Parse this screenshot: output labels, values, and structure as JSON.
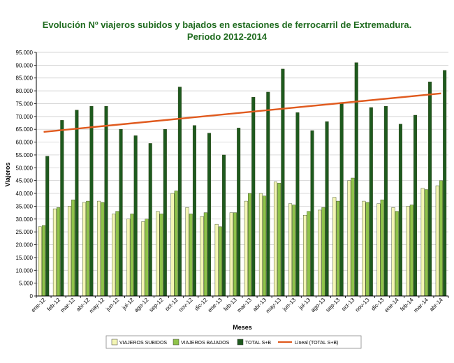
{
  "chart_data": {
    "type": "bar",
    "title_line1": "Evolución Nº viajeros subidos y bajados en estaciones de ferrocarril de Extremadura.",
    "title_line2": "Periodo 2012-2014",
    "xlabel": "Meses",
    "ylabel": "Viajeros",
    "ylim": [
      0,
      95000
    ],
    "ystep": 5000,
    "grid": true,
    "legend_placement": "bottom",
    "categories": [
      "ene-12",
      "feb-12",
      "mar-12",
      "abr-12",
      "may-12",
      "jun-12",
      "jul-12",
      "ago-12",
      "sep-12",
      "oct-12",
      "nov-12",
      "dic-12",
      "ene-13",
      "feb-13",
      "mar-13",
      "abr-13",
      "may-13",
      "jun-13",
      "jul-13",
      "ago-13",
      "sep-13",
      "oct-13",
      "nov-13",
      "dic-13",
      "ene-14",
      "feb-14",
      "mar-14",
      "abr-14"
    ],
    "series": [
      {
        "name": "VIAJEROS SUBIDOS",
        "color": "#f3f5b4",
        "values": [
          27000,
          34000,
          35000,
          36500,
          37000,
          32000,
          30000,
          29000,
          33000,
          40000,
          34500,
          31000,
          28000,
          32500,
          37000,
          40000,
          44500,
          36000,
          31500,
          33500,
          38500,
          45000,
          37000,
          36000,
          34500,
          35000,
          42000,
          43000
        ]
      },
      {
        "name": "VIAJEROS BAJADOS",
        "color": "#8fc34a",
        "values": [
          27500,
          34500,
          37500,
          37000,
          36500,
          33000,
          32000,
          30000,
          32000,
          41000,
          32000,
          32500,
          27000,
          32500,
          40000,
          39000,
          44000,
          35500,
          33000,
          34500,
          37000,
          46000,
          36500,
          37500,
          33000,
          35500,
          41500,
          45000
        ]
      },
      {
        "name": "TOTAL S+B",
        "color": "#1e5a1e",
        "values": [
          54500,
          68500,
          72500,
          74000,
          74000,
          65000,
          62500,
          59500,
          65000,
          81500,
          66500,
          63500,
          55000,
          65500,
          77500,
          79500,
          88500,
          71500,
          64500,
          68000,
          75500,
          91000,
          73500,
          74000,
          67000,
          70500,
          83500,
          88000
        ]
      }
    ],
    "trend": {
      "name": "Lineal (TOTAL S+B)",
      "color": "#e05a1e",
      "start": 64000,
      "end": 79000
    },
    "tick_labels": [
      "0",
      "5.000",
      "10.000",
      "15.000",
      "20.000",
      "25.000",
      "30.000",
      "35.000",
      "40.000",
      "45.000",
      "50.000",
      "55.000",
      "60.000",
      "65.000",
      "70.000",
      "75.000",
      "80.000",
      "85.000",
      "90.000",
      "95.000"
    ]
  }
}
